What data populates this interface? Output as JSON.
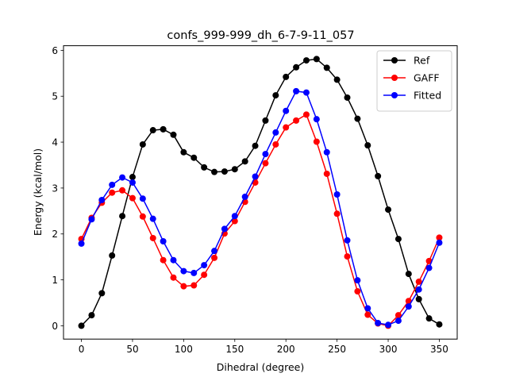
{
  "chart_data": {
    "type": "line",
    "title": "confs_999-999_dh_6-7-9-11_057",
    "xlabel": "Dihedral (degree)",
    "ylabel": "Energy (kcal/mol)",
    "xlim": [
      -17.5,
      367.5
    ],
    "ylim": [
      -0.29,
      6.1
    ],
    "xticks": [
      0,
      50,
      100,
      150,
      200,
      250,
      300,
      350
    ],
    "yticks": [
      0,
      1,
      2,
      3,
      4,
      5,
      6
    ],
    "grid": false,
    "legend": "top-right",
    "x": [
      0,
      10,
      20,
      30,
      40,
      50,
      60,
      70,
      80,
      90,
      100,
      110,
      120,
      130,
      140,
      150,
      160,
      170,
      180,
      190,
      200,
      210,
      220,
      230,
      240,
      250,
      260,
      270,
      280,
      290,
      300,
      310,
      320,
      330,
      340,
      350
    ],
    "series": [
      {
        "name": "Ref",
        "color": "#000000",
        "values": [
          0.0,
          0.23,
          0.71,
          1.53,
          2.39,
          3.24,
          3.95,
          4.26,
          4.28,
          4.16,
          3.78,
          3.66,
          3.45,
          3.35,
          3.36,
          3.41,
          3.58,
          3.92,
          4.47,
          5.02,
          5.42,
          5.63,
          5.78,
          5.81,
          5.62,
          5.36,
          4.97,
          4.51,
          3.93,
          3.26,
          2.53,
          1.89,
          1.13,
          0.58,
          0.16,
          0.03
        ]
      },
      {
        "name": "GAFF",
        "color": "#ff0000",
        "values": [
          1.89,
          2.35,
          2.68,
          2.9,
          2.95,
          2.78,
          2.38,
          1.91,
          1.43,
          1.05,
          0.86,
          0.88,
          1.11,
          1.48,
          2.01,
          2.28,
          2.7,
          3.12,
          3.54,
          3.95,
          4.32,
          4.47,
          4.6,
          4.01,
          3.31,
          2.44,
          1.51,
          0.75,
          0.24,
          0.05,
          0.0,
          0.23,
          0.54,
          0.96,
          1.41,
          1.92
        ]
      },
      {
        "name": "Fitted",
        "color": "#0000ff",
        "values": [
          1.79,
          2.32,
          2.74,
          3.07,
          3.23,
          3.12,
          2.77,
          2.33,
          1.84,
          1.43,
          1.19,
          1.15,
          1.32,
          1.63,
          2.11,
          2.39,
          2.81,
          3.25,
          3.74,
          4.21,
          4.68,
          5.11,
          5.08,
          4.5,
          3.78,
          2.86,
          1.86,
          0.99,
          0.38,
          0.06,
          0.02,
          0.11,
          0.42,
          0.79,
          1.26,
          1.81
        ]
      }
    ]
  }
}
